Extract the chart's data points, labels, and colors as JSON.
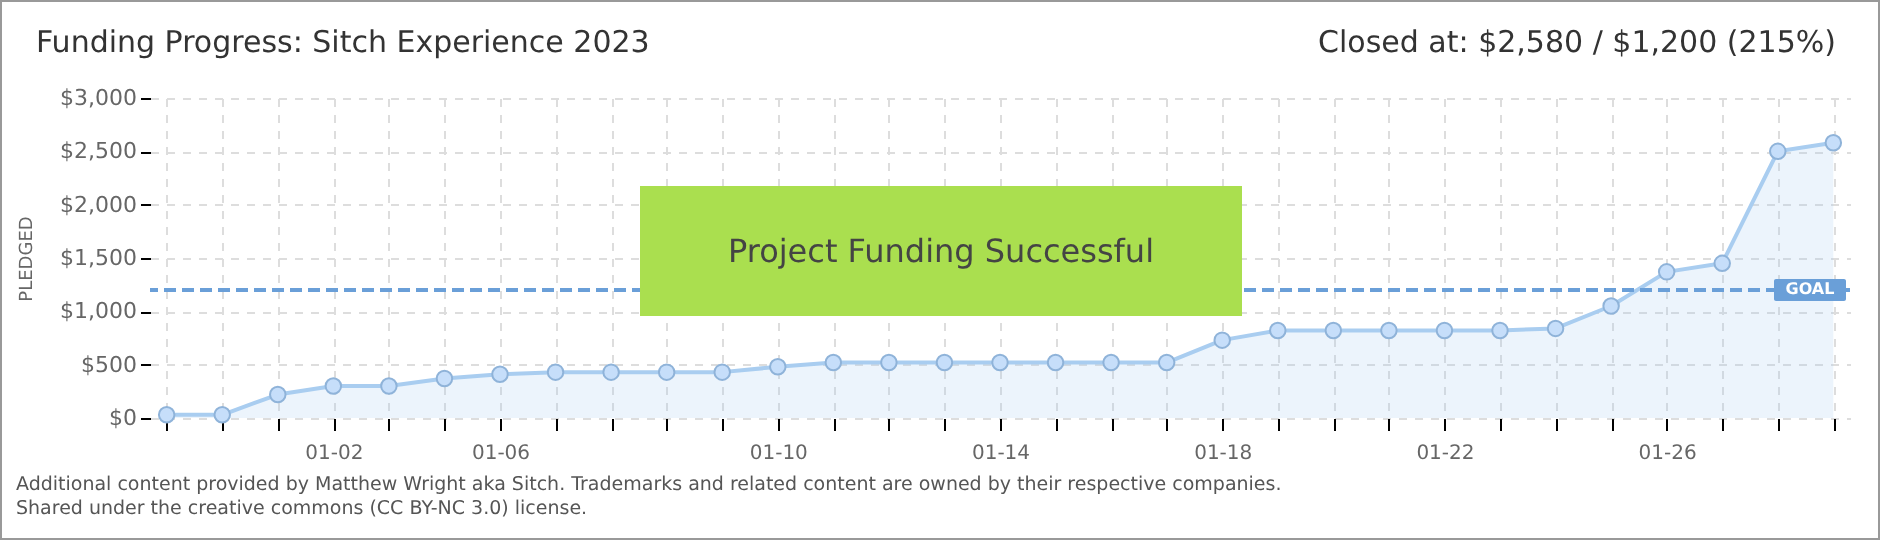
{
  "chart_data": {
    "type": "area",
    "title": "Funding Progress: Sitch Experience 2023",
    "ylabel": "PLEDGED",
    "annotations": [
      "Closed at: $2,580 / $1,200 (215%)",
      "Project Funding Successful",
      "Additional content provided by Matthew Wright aka Sitch. Trademarks and related content are owned by their respective companies.",
      "Shared under the creative commons (CC BY-NC 3.0) license."
    ],
    "categories": [
      null,
      null,
      null,
      "01-02",
      null,
      null,
      "01-06",
      null,
      null,
      null,
      null,
      "01-10",
      null,
      null,
      null,
      "01-14",
      null,
      null,
      null,
      "01-18",
      null,
      null,
      null,
      "01-22",
      null,
      null,
      null,
      "01-26",
      null,
      null,
      null
    ],
    "series": [
      {
        "color": "#a9cdf0",
        "values": [
          30,
          30,
          220,
          300,
          300,
          370,
          410,
          430,
          430,
          430,
          430,
          480,
          520,
          520,
          520,
          520,
          520,
          520,
          520,
          730,
          820,
          820,
          820,
          820,
          820,
          840,
          1050,
          1370,
          1450,
          2500,
          2580
        ]
      }
    ],
    "ylim": [
      0,
      3000
    ],
    "yticks": [
      {
        "value": 0,
        "label": "$0"
      },
      {
        "value": 500,
        "label": "$500"
      },
      {
        "value": 1000,
        "label": "$1,000"
      },
      {
        "value": 1500,
        "label": "$1,500"
      },
      {
        "value": 2000,
        "label": "$2,000"
      },
      {
        "value": 2500,
        "label": "$2,500"
      },
      {
        "value": 3000,
        "label": "$3,000"
      }
    ],
    "ref_lines": [
      {
        "axis": "y",
        "value": 1200,
        "label": "GOAL",
        "color": "#6a9fd8",
        "line_style": "dashed"
      }
    ],
    "grid": true,
    "marker": "circle"
  }
}
